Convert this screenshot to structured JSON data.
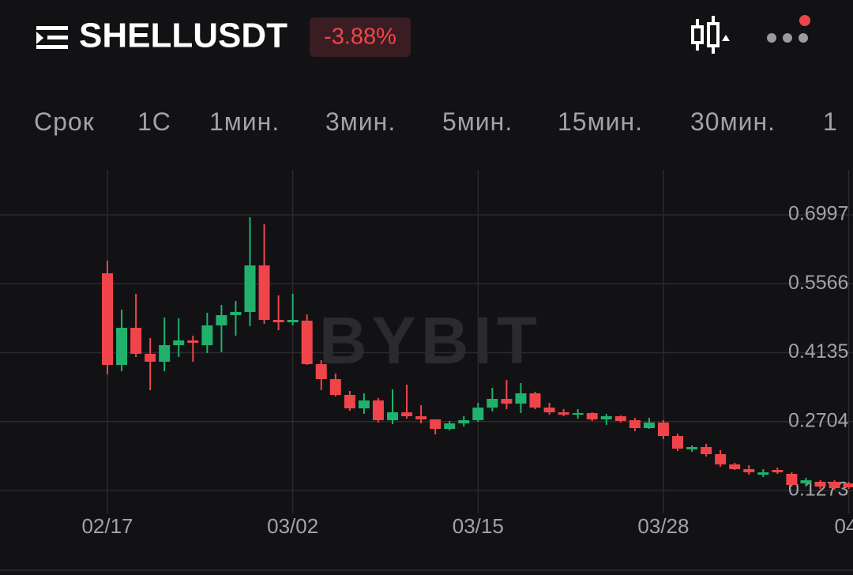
{
  "header": {
    "symbol": "SHELLUSDT",
    "change": "-3.88%"
  },
  "tabs": [
    "Срок",
    "1С",
    "1мин.",
    "3мин.",
    "5мин.",
    "15мин.",
    "30мин.",
    "1"
  ],
  "chart_data": {
    "type": "candlestick",
    "watermark": "BYBIT",
    "categories": [
      "02/17",
      null,
      null,
      null,
      null,
      null,
      null,
      null,
      null,
      null,
      null,
      null,
      null,
      "03/02",
      null,
      null,
      null,
      null,
      null,
      null,
      null,
      null,
      null,
      null,
      null,
      null,
      "03/15",
      null,
      null,
      null,
      null,
      null,
      null,
      null,
      null,
      null,
      null,
      null,
      null,
      "03/28",
      null,
      null,
      null,
      null,
      null,
      null,
      null,
      null,
      null,
      null,
      null,
      null,
      "04/"
    ],
    "open": [
      0.5783,
      0.3881,
      0.4652,
      0.4111,
      0.3947,
      0.4291,
      0.4389,
      0.4291,
      0.4701,
      0.4914,
      0.498,
      0.5947,
      0.4816,
      0.4767,
      0.48,
      0.3897,
      0.3586,
      0.3258,
      0.2979,
      0.3143,
      0.2733,
      0.2897,
      0.2815,
      0.275,
      0.2553,
      0.2667,
      0.2733,
      0.2995,
      0.3176,
      0.3077,
      0.3291,
      0.2995,
      0.2897,
      0.2848,
      0.2881,
      0.275,
      0.2815,
      0.2733,
      0.2569,
      0.2684,
      0.2405,
      0.2127,
      0.2176,
      0.2028,
      0.1815,
      0.1717,
      0.1601,
      0.17,
      0.1618,
      0.1421,
      0.1454,
      0.1454,
      0.1421
    ],
    "high": [
      0.6046,
      0.5029,
      0.5357,
      0.4439,
      0.4865,
      0.4849,
      0.4488,
      0.4963,
      0.5127,
      0.5209,
      0.6948,
      0.68,
      0.5324,
      0.5357,
      0.4931,
      0.3979,
      0.3701,
      0.334,
      0.3291,
      0.3192,
      0.3373,
      0.3471,
      0.3045,
      0.275,
      0.2717,
      0.2815,
      0.3094,
      0.3406,
      0.357,
      0.3504,
      0.3324,
      0.3094,
      0.2963,
      0.2963,
      0.2897,
      0.2864,
      0.2831,
      0.2782,
      0.2782,
      0.2733,
      0.2454,
      0.2208,
      0.2241,
      0.211,
      0.1848,
      0.1798,
      0.1717,
      0.1749,
      0.1651,
      0.1536,
      0.1486,
      0.1486,
      0.1454
    ],
    "low": [
      0.3684,
      0.375,
      0.4045,
      0.3356,
      0.375,
      0.4045,
      0.3947,
      0.4127,
      0.4143,
      0.4488,
      0.4685,
      0.4734,
      0.4603,
      0.4701,
      0.3881,
      0.3356,
      0.3225,
      0.293,
      0.2864,
      0.2684,
      0.2651,
      0.2766,
      0.2667,
      0.2438,
      0.252,
      0.2602,
      0.27,
      0.2914,
      0.2963,
      0.2881,
      0.2963,
      0.2848,
      0.2815,
      0.2766,
      0.2717,
      0.2635,
      0.2684,
      0.2503,
      0.2553,
      0.2339,
      0.2094,
      0.2077,
      0.1979,
      0.1766,
      0.17,
      0.1601,
      0.1552,
      0.1618,
      0.1355,
      0.1355,
      0.1306,
      0.129,
      0.1306
    ],
    "close": [
      0.3881,
      0.4652,
      0.4111,
      0.3947,
      0.4291,
      0.4389,
      0.434,
      0.4701,
      0.4914,
      0.498,
      0.5947,
      0.4816,
      0.4767,
      0.4816,
      0.3897,
      0.3586,
      0.3258,
      0.2979,
      0.3143,
      0.2733,
      0.2897,
      0.2815,
      0.275,
      0.2553,
      0.2667,
      0.2733,
      0.2995,
      0.3176,
      0.3077,
      0.3291,
      0.2995,
      0.2897,
      0.2848,
      0.2881,
      0.275,
      0.2815,
      0.2717,
      0.2569,
      0.2684,
      0.2405,
      0.2143,
      0.2176,
      0.2028,
      0.1815,
      0.1717,
      0.1651,
      0.1651,
      0.1651,
      0.1388,
      0.1486,
      0.1355,
      0.1322,
      0.1339
    ],
    "up_color": "#20b26c",
    "down_color": "#ef454a",
    "ylim": [
      0.088,
      0.7932
    ],
    "yticks": [
      0.6997,
      0.5566,
      0.4135,
      0.2704,
      0.1273
    ],
    "grid": true
  }
}
